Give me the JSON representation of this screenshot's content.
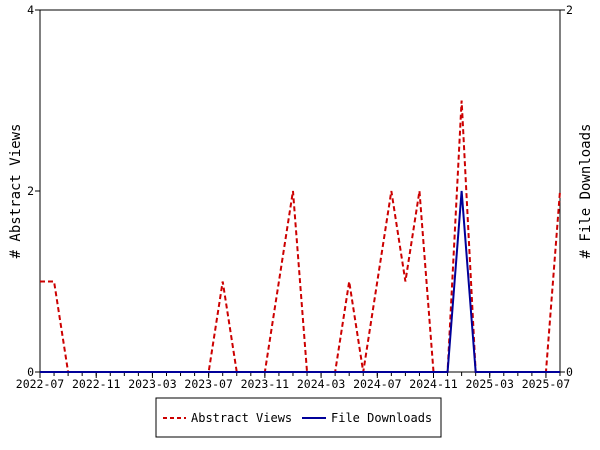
{
  "chart_data": {
    "type": "line",
    "x": [
      "2022-07",
      "2022-08",
      "2022-09",
      "2022-10",
      "2022-11",
      "2022-12",
      "2023-01",
      "2023-02",
      "2023-03",
      "2023-04",
      "2023-05",
      "2023-06",
      "2023-07",
      "2023-08",
      "2023-09",
      "2023-10",
      "2023-11",
      "2023-12",
      "2024-01",
      "2024-02",
      "2024-03",
      "2024-04",
      "2024-05",
      "2024-06",
      "2024-07",
      "2024-08",
      "2024-09",
      "2024-10",
      "2024-11",
      "2024-12",
      "2025-01",
      "2025-02",
      "2025-03",
      "2025-04",
      "2025-05",
      "2025-06",
      "2025-07",
      "2025-08"
    ],
    "x_tick_labels": [
      "2022-07",
      "2022-11",
      "2023-03",
      "2023-07",
      "2023-11",
      "2024-03",
      "2024-07",
      "2024-11",
      "2025-03",
      "2025-07"
    ],
    "x_tick_positions": [
      0,
      4,
      8,
      12,
      16,
      20,
      24,
      28,
      32,
      36
    ],
    "series": [
      {
        "name": "Abstract Views",
        "axis": "left",
        "color": "#cc0000",
        "dash": "dashed",
        "values": [
          1,
          1,
          0,
          0,
          0,
          0,
          0,
          0,
          0,
          0,
          0,
          0,
          0,
          1,
          0,
          0,
          0,
          1,
          2,
          0,
          0,
          0,
          1,
          0,
          1,
          2,
          1,
          2,
          0,
          0,
          3,
          0,
          0,
          0,
          0,
          0,
          0,
          2
        ]
      },
      {
        "name": "File Downloads",
        "axis": "right",
        "color": "#000099",
        "dash": "solid",
        "values": [
          0,
          0,
          0,
          0,
          0,
          0,
          0,
          0,
          0,
          0,
          0,
          0,
          0,
          0,
          0,
          0,
          0,
          0,
          0,
          0,
          0,
          0,
          0,
          0,
          0,
          0,
          0,
          0,
          0,
          0,
          1,
          0,
          0,
          0,
          0,
          0,
          0,
          0
        ]
      }
    ],
    "ylabel_left": "# Abstract Views",
    "ylabel_right": "# File Downloads",
    "ylim_left": [
      0,
      4
    ],
    "ylim_right": [
      0,
      2
    ],
    "yticks_left": [
      0,
      2,
      4
    ],
    "yticks_right": [
      0,
      2
    ],
    "grid": false,
    "legend_position": "bottom-center"
  }
}
